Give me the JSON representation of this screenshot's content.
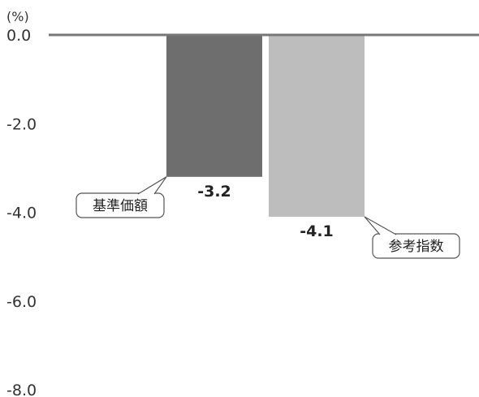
{
  "chart_data": {
    "type": "bar",
    "categories": [
      "基準価額",
      "参考指数"
    ],
    "values": [
      -3.2,
      -4.1
    ],
    "value_labels": [
      "-3.2",
      "-4.1"
    ],
    "ylabel": "(%)",
    "ylim": [
      -8.0,
      0.0
    ],
    "yticks": [
      0.0,
      -2.0,
      -4.0,
      -6.0,
      -8.0
    ],
    "ytick_labels": [
      "0.0",
      "-2.0",
      "-4.0",
      "-6.0",
      "-8.0"
    ],
    "grid": false,
    "colors": [
      "#6e6e6e",
      "#bdbdbd"
    ],
    "zero_line_color": "#777777"
  }
}
